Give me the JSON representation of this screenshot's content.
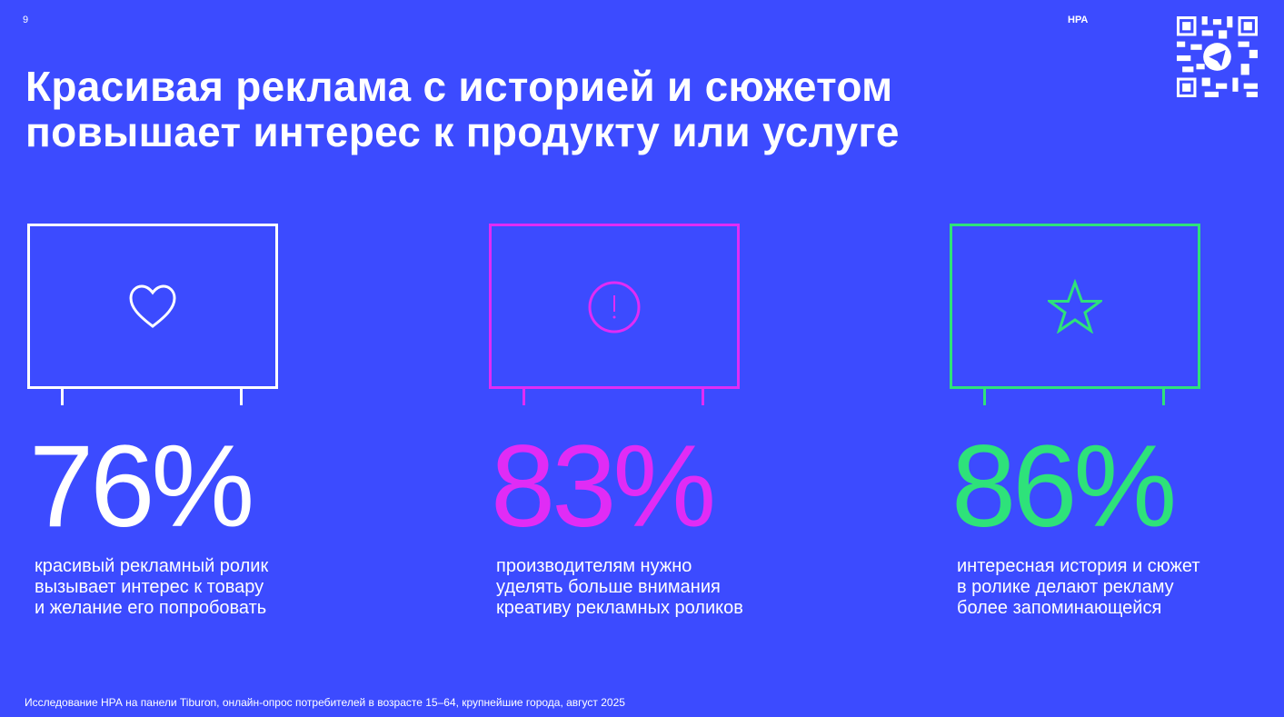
{
  "page_number": "9",
  "brand": "НРА",
  "title_lines": [
    "Красивая реклама с историей и сюжетом",
    "повышает интерес к продукту или услуге"
  ],
  "stats": [
    {
      "value": "76%",
      "color": "#ffffff",
      "icon": "heart-icon",
      "desc": [
        "красивый рекламный ролик",
        "вызывает интерес к товару",
        "и желание его попробовать"
      ]
    },
    {
      "value": "83%",
      "color": "#e02cf5",
      "icon": "exclamation-circle-icon",
      "desc": [
        "производителям нужно",
        "уделять больше внимания",
        "креативу рекламных роликов"
      ]
    },
    {
      "value": "86%",
      "color": "#2ee27a",
      "icon": "star-icon",
      "desc": [
        "интересная история и сюжет",
        "в ролике делают рекламу",
        "более запоминающейся"
      ]
    }
  ],
  "footnote": "Исследование НРА на панели Tiburon, онлайн-опрос потребителей в возрасте 15–64, крупнейшие города, август 2025"
}
